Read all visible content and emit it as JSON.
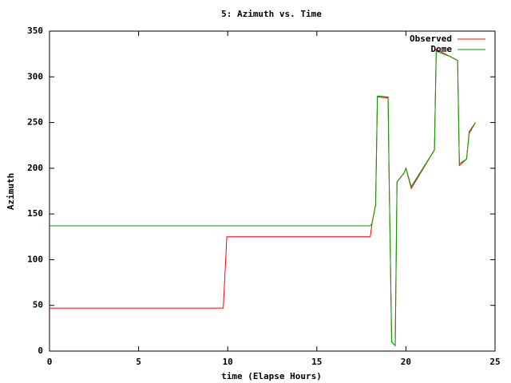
{
  "chart_data": {
    "type": "line",
    "title": "5: Azimuth vs. Time",
    "x_label": "time (Elapse Hours)",
    "y_label": "Azimuth",
    "x": [
      0,
      9.75,
      9.95,
      18.0,
      18.1,
      18.3,
      18.4,
      19.0,
      19.05,
      19.2,
      19.4,
      19.5,
      19.9,
      20.0,
      20.3,
      21.6,
      21.7,
      22.5,
      22.9,
      23.0,
      23.4,
      23.55,
      23.9
    ],
    "series": [
      {
        "name": "Observed",
        "color": "#ff0000",
        "values": [
          47,
          47,
          125,
          125,
          140,
          160,
          278,
          277,
          200,
          10,
          6,
          185,
          195,
          200,
          178,
          220,
          330,
          322,
          318,
          203,
          210,
          240,
          250
        ]
      },
      {
        "name": "Dome",
        "color": "#00a000",
        "values": [
          137,
          137,
          137,
          137,
          140,
          160,
          279,
          278,
          200,
          10,
          6,
          185,
          195,
          200,
          180,
          220,
          328,
          322,
          318,
          205,
          210,
          238,
          250
        ]
      }
    ],
    "xlim": [
      0,
      25
    ],
    "xticks": [
      0,
      5,
      10,
      15,
      20,
      25
    ],
    "ylim": [
      0,
      350
    ],
    "yticks": [
      0,
      50,
      100,
      150,
      200,
      250,
      300,
      350
    ],
    "grid": false,
    "legend": "top-right"
  }
}
